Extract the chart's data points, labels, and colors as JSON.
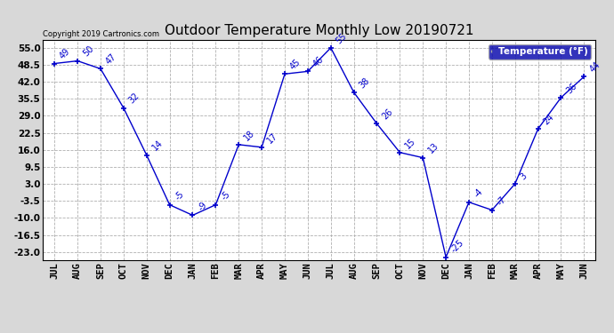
{
  "title": "Outdoor Temperature Monthly Low 20190721",
  "copyright": "Copyright 2019 Cartronics.com",
  "legend_label": "Temperature (°F)",
  "months": [
    "JUL",
    "AUG",
    "SEP",
    "OCT",
    "NOV",
    "DEC",
    "JAN",
    "FEB",
    "MAR",
    "APR",
    "MAY",
    "JUN",
    "JUL",
    "AUG",
    "SEP",
    "OCT",
    "NOV",
    "DEC",
    "JAN",
    "FEB",
    "MAR",
    "APR",
    "MAY",
    "JUN"
  ],
  "values": [
    49,
    50,
    47,
    32,
    14,
    -5,
    -9,
    -5,
    18,
    17,
    45,
    46,
    55,
    38,
    26,
    15,
    13,
    -25,
    -4,
    -7,
    3,
    24,
    36,
    44
  ],
  "line_color": "#0000cc",
  "marker": "+",
  "yticks": [
    55.0,
    48.5,
    42.0,
    35.5,
    29.0,
    22.5,
    16.0,
    9.5,
    3.0,
    -3.5,
    -10.0,
    -16.5,
    -23.0
  ],
  "ylim": [
    -26,
    58
  ],
  "background_color": "#d8d8d8",
  "plot_bg": "#ffffff",
  "grid_color": "#b0b0b0",
  "title_fontsize": 11,
  "label_fontsize": 7.5,
  "annot_fontsize": 7,
  "legend_bg": "#0000aa",
  "legend_text_color": "#ffffff"
}
